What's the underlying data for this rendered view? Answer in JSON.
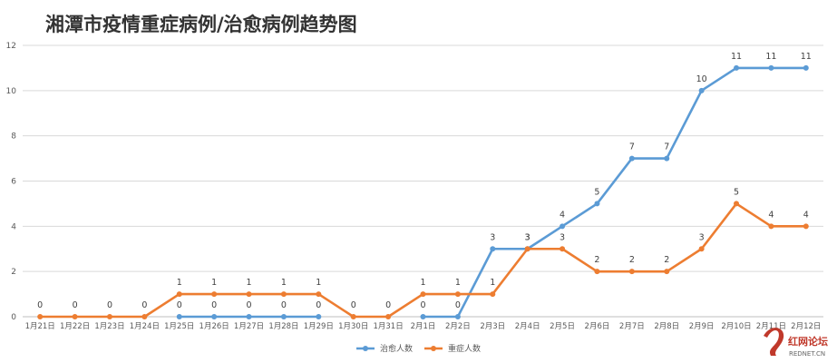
{
  "chart_data": {
    "type": "line",
    "title": "湘潭市疫情重症病例/治愈病例趋势图",
    "xlabel": "",
    "ylabel": "",
    "ylim": [
      0,
      12
    ],
    "yticks": [
      0,
      2,
      4,
      6,
      8,
      10,
      12
    ],
    "grid": true,
    "legend_position": "bottom",
    "categories": [
      "1月21日",
      "1月22日",
      "1月23日",
      "1月24日",
      "1月25日",
      "1月26日",
      "1月27日",
      "1月28日",
      "1月29日",
      "1月30日",
      "1月31日",
      "2月1日",
      "2月2日",
      "2月3日",
      "2月4日",
      "2月5日",
      "2月6日",
      "2月7日",
      "2月8日",
      "2月9日",
      "2月10日",
      "2月11日",
      "2月12日"
    ],
    "series": [
      {
        "name": "治愈人数",
        "color": "#5b9bd5",
        "values": [
          null,
          null,
          null,
          null,
          0,
          0,
          0,
          0,
          0,
          null,
          null,
          0,
          0,
          3,
          3,
          4,
          5,
          7,
          7,
          10,
          11,
          11,
          11
        ],
        "labels": [
          null,
          null,
          null,
          null,
          "0",
          "0",
          "0",
          "0",
          "0",
          null,
          null,
          "0",
          "0",
          "3",
          "3",
          "4",
          "5",
          "7",
          "7",
          "10",
          "11",
          "11",
          "11"
        ]
      },
      {
        "name": "重症人数",
        "color": "#ed7d31",
        "values": [
          0,
          0,
          0,
          0,
          1,
          1,
          1,
          1,
          1,
          0,
          0,
          1,
          1,
          1,
          3,
          3,
          2,
          2,
          2,
          3,
          5,
          4,
          4
        ],
        "labels": [
          "0",
          "0",
          "0",
          "0",
          "1",
          "1",
          "1",
          "1",
          "1",
          "0",
          "0",
          "1",
          "1",
          "1",
          "3",
          "3",
          "2",
          "2",
          "2",
          "3",
          "5",
          "4",
          "4"
        ]
      }
    ]
  },
  "watermark": {
    "text": "红网论坛",
    "sub": "REDNET.CN",
    "color": "#c0392b",
    "icon": "rednet-logo-icon"
  }
}
